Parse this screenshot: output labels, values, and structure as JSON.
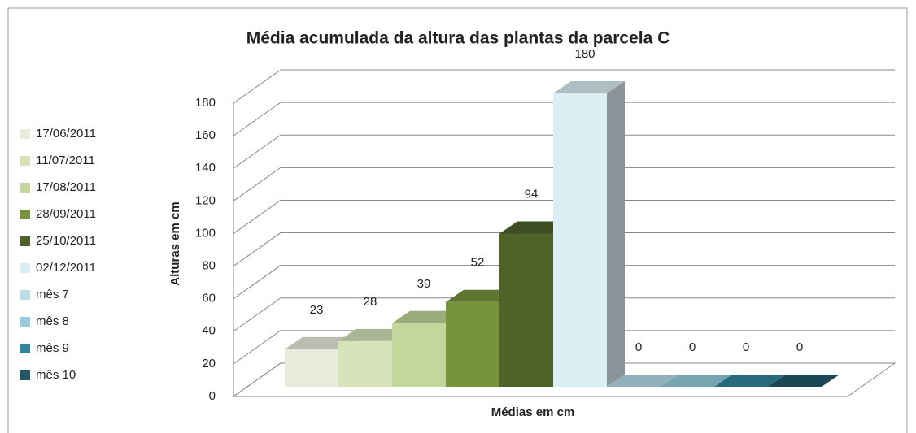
{
  "chart_data": {
    "type": "bar3d",
    "title": "Média acumulada da altura das plantas  da parcela C",
    "x_label": "Médias em cm",
    "y_label": "Alturas em cm",
    "series": [
      {
        "name": "17/06/2011",
        "color": "#e9ecdc",
        "values": [
          23
        ]
      },
      {
        "name": "11/07/2011",
        "color": "#d7e2b9",
        "values": [
          28
        ]
      },
      {
        "name": "17/08/2011",
        "color": "#c3d69b",
        "values": [
          39
        ]
      },
      {
        "name": "28/09/2011",
        "color": "#77933c",
        "values": [
          52
        ]
      },
      {
        "name": "25/10/2011",
        "color": "#4f6228",
        "values": [
          94
        ]
      },
      {
        "name": "02/12/2011",
        "color": "#dbeef4",
        "values": [
          180
        ]
      },
      {
        "name": "mês 7",
        "color": "#b7dde8",
        "values": [
          0
        ]
      },
      {
        "name": "mês 8",
        "color": "#93cddd",
        "values": [
          0
        ]
      },
      {
        "name": "mês 9",
        "color": "#31859c",
        "values": [
          0
        ]
      },
      {
        "name": "mês 10",
        "color": "#215968",
        "values": [
          0
        ]
      }
    ],
    "ylim": [
      0,
      180
    ],
    "yticks": [
      0,
      20,
      40,
      60,
      80,
      100,
      120,
      140,
      160,
      180
    ],
    "grid": true,
    "legend": "left"
  }
}
